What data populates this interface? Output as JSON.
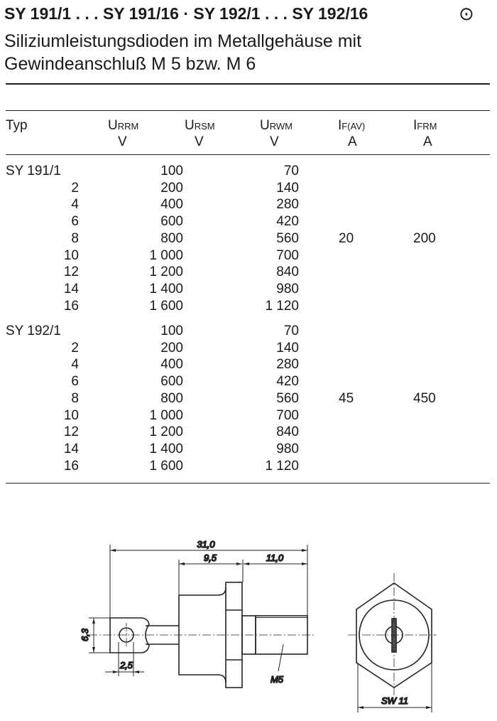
{
  "header": {
    "title": "SY 191/1 . . . SY 191/16 · SY 192/1 . . . SY 192/16",
    "symbol": "⊙",
    "subtitle_line1": "Siliziumleistungsdioden im Metallgehäuse mit",
    "subtitle_line2": "Gewindeanschluß M 5 bzw. M 6"
  },
  "table": {
    "columns": [
      {
        "sym": "Typ",
        "sub": "",
        "unit": ""
      },
      {
        "sym": "U",
        "sub": "RRM",
        "unit": "V"
      },
      {
        "sym": "U",
        "sub": "RSM",
        "unit": "V"
      },
      {
        "sym": "U",
        "sub": "RWM",
        "unit": "V"
      },
      {
        "sym": "I",
        "sub": "F(AV)",
        "unit": "A"
      },
      {
        "sym": "I",
        "sub": "FRM",
        "unit": "A"
      }
    ],
    "groups": [
      {
        "types": [
          "SY 191/1",
          "2",
          "4",
          "6",
          "8",
          "10",
          "12",
          "14",
          "16"
        ],
        "urrm": [
          "100",
          "200",
          "400",
          "600",
          "800",
          "1 000",
          "1 200",
          "1 400",
          "1 600"
        ],
        "urwm": [
          "70",
          "140",
          "280",
          "420",
          "560",
          "700",
          "840",
          "980",
          "1 120"
        ],
        "if_av": "20",
        "ifrm": "200"
      },
      {
        "types": [
          "SY 192/1",
          "2",
          "4",
          "6",
          "8",
          "10",
          "12",
          "14",
          "16"
        ],
        "urrm": [
          "100",
          "200",
          "400",
          "600",
          "800",
          "1 000",
          "1 200",
          "1 400",
          "1 600"
        ],
        "urwm": [
          "70",
          "140",
          "280",
          "420",
          "560",
          "700",
          "840",
          "980",
          "1 120"
        ],
        "if_av": "45",
        "ifrm": "450"
      }
    ]
  },
  "drawing": {
    "dim_total": "31,0",
    "dim_body": "9,5",
    "dim_thread": "11,0",
    "dim_tab": "6,3",
    "dim_hole": "2,5",
    "thread_label": "M5",
    "wrench_label": "SW 11"
  }
}
